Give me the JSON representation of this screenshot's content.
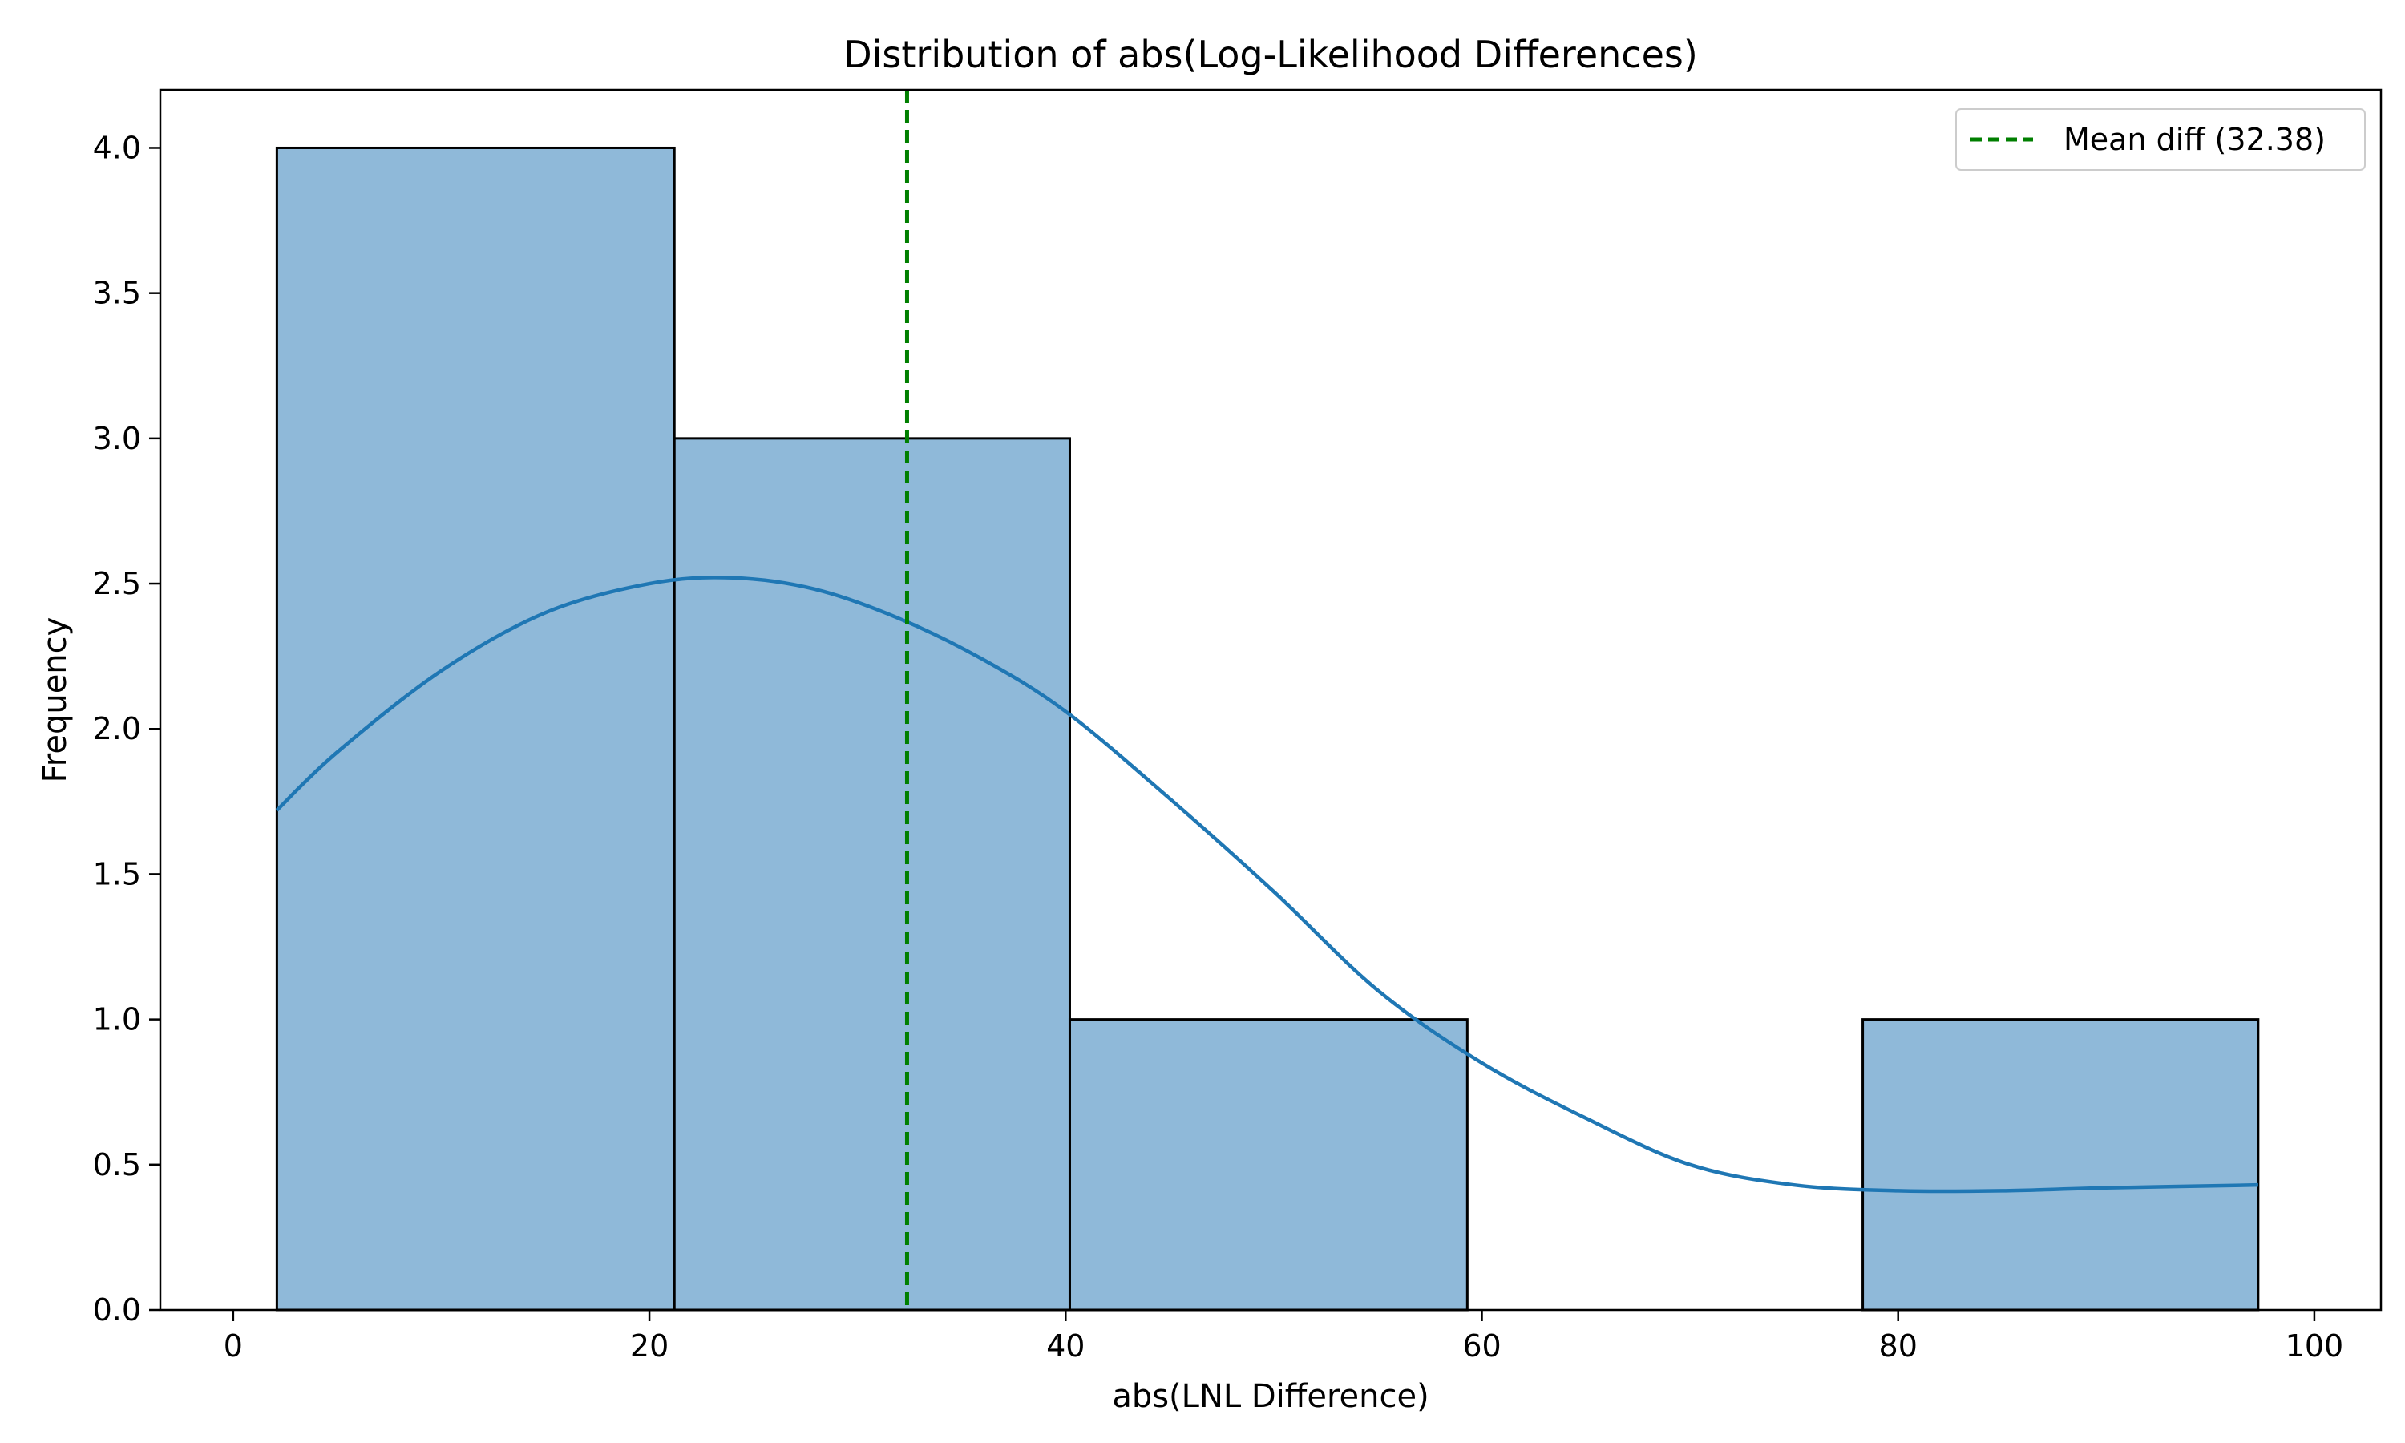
{
  "chart_data": {
    "type": "histogram",
    "title": "Distribution of abs(Log-Likelihood Differences)",
    "xlabel": "abs(LNL Difference)",
    "ylabel": "Frequency",
    "xlim": [
      -3.5,
      103.2
    ],
    "ylim": [
      0,
      4.2
    ],
    "xticks": [
      0,
      20,
      40,
      60,
      80,
      100
    ],
    "yticks": [
      0.0,
      0.5,
      1.0,
      1.5,
      2.0,
      2.5,
      3.0,
      3.5,
      4.0
    ],
    "bins": [
      {
        "x0": 2.1,
        "x1": 21.2,
        "count": 4
      },
      {
        "x0": 21.2,
        "x1": 40.2,
        "count": 3
      },
      {
        "x0": 40.2,
        "x1": 59.3,
        "count": 1
      },
      {
        "x0": 59.3,
        "x1": 78.3,
        "count": 0
      },
      {
        "x0": 78.3,
        "x1": 97.3,
        "count": 1
      }
    ],
    "bar_color": "#8fb9d9",
    "bar_edge_color": "#000000",
    "kde": {
      "color": "#1f77b4",
      "x": [
        2.1,
        5,
        10,
        15,
        20,
        24,
        28,
        32,
        36,
        40,
        45,
        50,
        55,
        60,
        65,
        70,
        75,
        80,
        85,
        90,
        97.3
      ],
      "y": [
        1.72,
        1.92,
        2.2,
        2.4,
        2.5,
        2.52,
        2.48,
        2.38,
        2.24,
        2.06,
        1.76,
        1.44,
        1.1,
        0.85,
        0.66,
        0.5,
        0.43,
        0.41,
        0.41,
        0.42,
        0.43
      ]
    },
    "mean_line": {
      "value": 32.38,
      "label": "Mean diff (32.38)",
      "color": "#007f00"
    },
    "legend_position": "top-right",
    "grid": false
  }
}
